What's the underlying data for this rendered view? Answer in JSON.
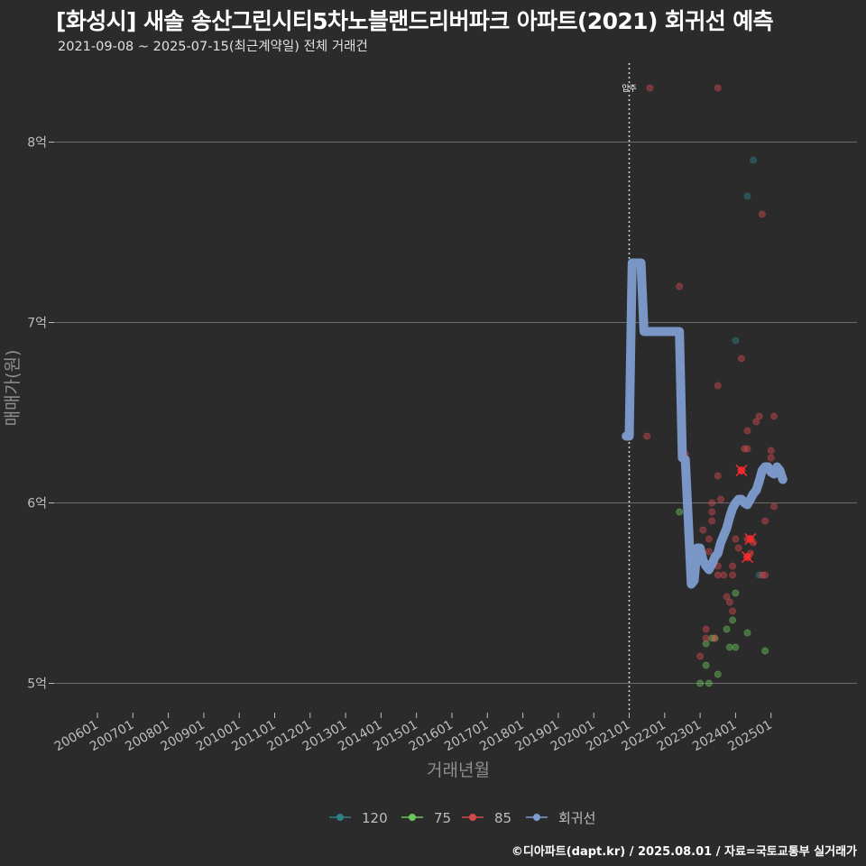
{
  "header": {
    "title": "[화성시] 새솔 송산그린시티5차노블랜드리버파크 아파트(2021) 회귀선 예측",
    "subtitle": "2021-09-08 ~ 2025-07-15(최근계약일) 전체 거래건"
  },
  "caption": "©디아파트(dapt.kr) / 2025.08.01 / 자료=국토교통부 실거래가",
  "colors": {
    "background": "#2b2b2c",
    "grid": "#6a6a6a",
    "series_120": "#2f7f86",
    "series_75": "#6dc45a",
    "series_85": "#d0494d",
    "regression": "#7e9ccf",
    "highlight": "#ff2a2a"
  },
  "chart_data": {
    "type": "scatter",
    "title": "[화성시] 새솔 송산그린시티5차노블랜드리버파크 아파트(2021) 회귀선 예측",
    "xlabel": "거래년월",
    "ylabel": "매매가(원)",
    "x_ticks": [
      "200601",
      "200701",
      "200801",
      "200901",
      "201001",
      "201101",
      "201201",
      "201301",
      "201401",
      "201501",
      "201601",
      "201701",
      "201801",
      "201901",
      "202001",
      "202101",
      "202201",
      "202301",
      "202401",
      "202501"
    ],
    "y_ticks": [
      "5억",
      "6억",
      "7억",
      "8억"
    ],
    "y_tick_values": [
      5.0,
      6.0,
      7.0,
      8.0
    ],
    "ylim": [
      4.85,
      8.45
    ],
    "y_unit": "억",
    "annotation": {
      "label": "입주",
      "x": "2021-01"
    },
    "legend": {
      "position": "bottom",
      "entries": [
        "120",
        "75",
        "85",
        "회귀선"
      ]
    },
    "series": [
      {
        "name": "120",
        "points": [
          [
            "2024-01",
            6.9
          ],
          [
            "2024-05",
            7.7
          ],
          [
            "2024-07",
            7.9
          ],
          [
            "2024-09",
            5.6
          ]
        ]
      },
      {
        "name": "75",
        "points": [
          [
            "2022-06",
            5.95
          ],
          [
            "2023-01",
            5.0
          ],
          [
            "2023-03",
            5.1
          ],
          [
            "2023-03",
            5.22
          ],
          [
            "2023-04",
            5.0
          ],
          [
            "2023-05",
            5.25
          ],
          [
            "2023-06",
            5.25
          ],
          [
            "2023-07",
            5.05
          ],
          [
            "2023-10",
            5.3
          ],
          [
            "2023-11",
            5.2
          ],
          [
            "2023-12",
            5.35
          ],
          [
            "2024-01",
            5.2
          ],
          [
            "2024-01",
            5.5
          ],
          [
            "2024-05",
            5.28
          ],
          [
            "2024-11",
            5.18
          ]
        ]
      },
      {
        "name": "85",
        "points": [
          [
            "2021-08",
            8.3
          ],
          [
            "2021-07",
            6.37
          ],
          [
            "2022-06",
            7.2
          ],
          [
            "2022-08",
            6.27
          ],
          [
            "2023-01",
            5.15
          ],
          [
            "2023-02",
            5.85
          ],
          [
            "2023-03",
            5.3
          ],
          [
            "2023-03",
            5.25
          ],
          [
            "2023-04",
            5.8
          ],
          [
            "2023-04",
            5.73
          ],
          [
            "2023-05",
            5.9
          ],
          [
            "2023-05",
            5.95
          ],
          [
            "2023-05",
            6.0
          ],
          [
            "2023-06",
            5.25
          ],
          [
            "2023-07",
            6.65
          ],
          [
            "2023-07",
            6.15
          ],
          [
            "2023-07",
            5.6
          ],
          [
            "2023-07",
            5.65
          ],
          [
            "2023-08",
            6.02
          ],
          [
            "2023-09",
            5.6
          ],
          [
            "2023-10",
            5.48
          ],
          [
            "2023-11",
            5.45
          ],
          [
            "2023-12",
            5.4
          ],
          [
            "2023-12",
            5.6
          ],
          [
            "2023-12",
            5.65
          ],
          [
            "2024-01",
            5.8
          ],
          [
            "2024-02",
            5.75
          ],
          [
            "2024-03",
            6.8
          ],
          [
            "2024-04",
            6.3
          ],
          [
            "2024-05",
            6.4
          ],
          [
            "2024-05",
            6.3
          ],
          [
            "2024-05",
            5.8
          ],
          [
            "2024-06",
            5.72
          ],
          [
            "2024-07",
            5.78
          ],
          [
            "2024-08",
            6.45
          ],
          [
            "2024-09",
            6.48
          ],
          [
            "2024-10",
            7.6
          ],
          [
            "2024-10",
            5.6
          ],
          [
            "2024-11",
            5.9
          ],
          [
            "2024-11",
            5.6
          ],
          [
            "2025-01",
            6.29
          ],
          [
            "2025-01",
            6.25
          ],
          [
            "2025-02",
            6.48
          ],
          [
            "2025-02",
            5.98
          ],
          [
            "2023-07",
            8.3
          ]
        ]
      },
      {
        "name": "highlight",
        "points": [
          [
            "2024-03",
            6.18
          ],
          [
            "2024-06",
            5.8
          ],
          [
            "2024-05",
            5.7
          ]
        ]
      },
      {
        "name": "회귀선",
        "points": [
          [
            "2020-12",
            6.37
          ],
          [
            "2021-01",
            6.37
          ],
          [
            "2021-02",
            7.33
          ],
          [
            "2021-05",
            7.33
          ],
          [
            "2021-06",
            6.95
          ],
          [
            "2022-06",
            6.95
          ],
          [
            "2022-07",
            6.25
          ],
          [
            "2022-08",
            6.24
          ],
          [
            "2022-09",
            5.9
          ],
          [
            "2022-10",
            5.55
          ],
          [
            "2022-11",
            5.57
          ],
          [
            "2022-12",
            5.75
          ],
          [
            "2023-01",
            5.75
          ],
          [
            "2023-02",
            5.68
          ],
          [
            "2023-03",
            5.65
          ],
          [
            "2023-04",
            5.63
          ],
          [
            "2023-05",
            5.66
          ],
          [
            "2023-06",
            5.7
          ],
          [
            "2023-07",
            5.72
          ],
          [
            "2023-08",
            5.78
          ],
          [
            "2023-09",
            5.82
          ],
          [
            "2023-10",
            5.86
          ],
          [
            "2023-11",
            5.92
          ],
          [
            "2023-12",
            5.97
          ],
          [
            "2024-01",
            6.0
          ],
          [
            "2024-02",
            6.02
          ],
          [
            "2024-03",
            6.02
          ],
          [
            "2024-04",
            6.0
          ],
          [
            "2024-05",
            5.99
          ],
          [
            "2024-06",
            6.02
          ],
          [
            "2024-07",
            6.05
          ],
          [
            "2024-08",
            6.07
          ],
          [
            "2024-09",
            6.12
          ],
          [
            "2024-10",
            6.18
          ],
          [
            "2024-11",
            6.2
          ],
          [
            "2024-12",
            6.2
          ],
          [
            "2025-01",
            6.17
          ],
          [
            "2025-02",
            6.16
          ],
          [
            "2025-03",
            6.2
          ],
          [
            "2025-04",
            6.18
          ],
          [
            "2025-05",
            6.13
          ]
        ]
      }
    ]
  }
}
